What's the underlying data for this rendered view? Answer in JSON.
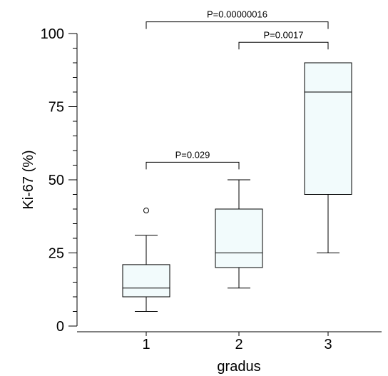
{
  "chart_data": {
    "type": "box",
    "xlabel": "gradus",
    "ylabel": "Ki-67 (%)",
    "ylim": [
      0,
      100
    ],
    "yticks": [
      0,
      25,
      50,
      75,
      100
    ],
    "categories": [
      "1",
      "2",
      "3"
    ],
    "boxes": [
      {
        "category": "1",
        "whisker_low": 5,
        "q1": 10,
        "median": 13,
        "q3": 21,
        "whisker_high": 31,
        "outliers": [
          39.5
        ]
      },
      {
        "category": "2",
        "whisker_low": 13,
        "q1": 20,
        "median": 25,
        "q3": 40,
        "whisker_high": 50,
        "outliers": []
      },
      {
        "category": "3",
        "whisker_low": 25,
        "q1": 45,
        "median": 80,
        "q3": 90,
        "whisker_high": 90,
        "outliers": []
      }
    ],
    "comparisons": [
      {
        "from": "1",
        "to": "2",
        "label": "P=0.029",
        "level": 56
      },
      {
        "from": "2",
        "to": "3",
        "label": "P=0.0017",
        "level": 97
      },
      {
        "from": "1",
        "to": "3",
        "label": "P=0.00000016",
        "level": 104
      }
    ],
    "grid": false,
    "legend": "none"
  }
}
